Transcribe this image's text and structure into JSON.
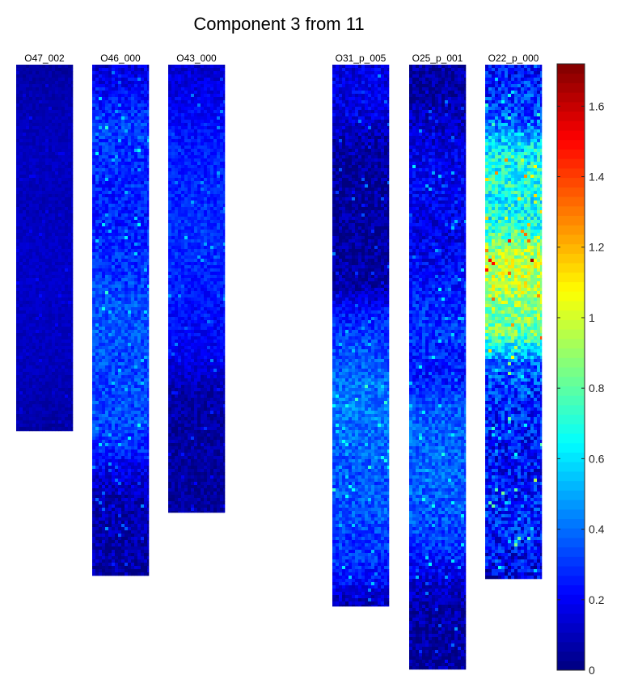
{
  "chart_data": {
    "type": "heatmap",
    "title": "Component 3 from 11",
    "panels": [
      {
        "label": "O47_002",
        "profile": [
          0.05,
          0.07,
          0.08,
          0.09,
          0.1,
          0.1,
          0.11,
          0.11,
          0.1,
          0.1,
          0.11,
          0.12,
          0.12,
          0.12,
          0.12,
          0.11,
          0.11,
          0.11,
          0.1,
          0.1,
          0.09,
          0.08,
          0.07,
          0.05
        ],
        "texture": 0.05
      },
      {
        "label": "O46_000",
        "profile": [
          0.14,
          0.2,
          0.26,
          0.32,
          0.3,
          0.28,
          0.27,
          0.26,
          0.27,
          0.28,
          0.3,
          0.33,
          0.35,
          0.36,
          0.34,
          0.33,
          0.34,
          0.34,
          0.32,
          0.26,
          0.16,
          0.1,
          0.08,
          0.07,
          0.08,
          0.06
        ],
        "texture": 0.14
      },
      {
        "label": "O43_000",
        "profile": [
          0.14,
          0.17,
          0.21,
          0.24,
          0.27,
          0.27,
          0.28,
          0.29,
          0.28,
          0.26,
          0.24,
          0.22,
          0.2,
          0.14,
          0.07,
          0.06,
          0.06,
          0.06,
          0.05,
          0.05
        ],
        "texture": 0.1
      },
      {
        "label": "O31_p_005",
        "profile": [
          0.16,
          0.18,
          0.16,
          0.08,
          0.06,
          0.05,
          0.05,
          0.05,
          0.05,
          0.08,
          0.24,
          0.32,
          0.36,
          0.4,
          0.42,
          0.4,
          0.37,
          0.35,
          0.36,
          0.32,
          0.3,
          0.22,
          0.06
        ],
        "texture": 0.14
      },
      {
        "label": "O25_p_001",
        "profile": [
          0.05,
          0.06,
          0.1,
          0.14,
          0.18,
          0.2,
          0.18,
          0.17,
          0.2,
          0.24,
          0.28,
          0.3,
          0.27,
          0.25,
          0.36,
          0.38,
          0.38,
          0.38,
          0.36,
          0.34,
          0.3,
          0.18,
          0.09,
          0.06,
          0.05,
          0.05
        ],
        "texture": 0.15
      },
      {
        "label": "O22_p_000",
        "profile": [
          0.22,
          0.28,
          0.36,
          0.6,
          0.7,
          0.66,
          0.7,
          0.95,
          0.98,
          0.88,
          0.82,
          0.4,
          0.3,
          0.28,
          0.24,
          0.22,
          0.26,
          0.26,
          0.22,
          0.16
        ],
        "texture": 0.25
      }
    ],
    "colorbar": {
      "colormap": "jet",
      "min": 0,
      "max": 1.72,
      "ticks": [
        0,
        0.2,
        0.4,
        0.6,
        0.8,
        1,
        1.2,
        1.4,
        1.6
      ],
      "tick_labels": [
        "0",
        "0.2",
        "0.4",
        "0.6",
        "0.8",
        "1",
        "1.2",
        "1.4",
        "1.6"
      ]
    }
  }
}
